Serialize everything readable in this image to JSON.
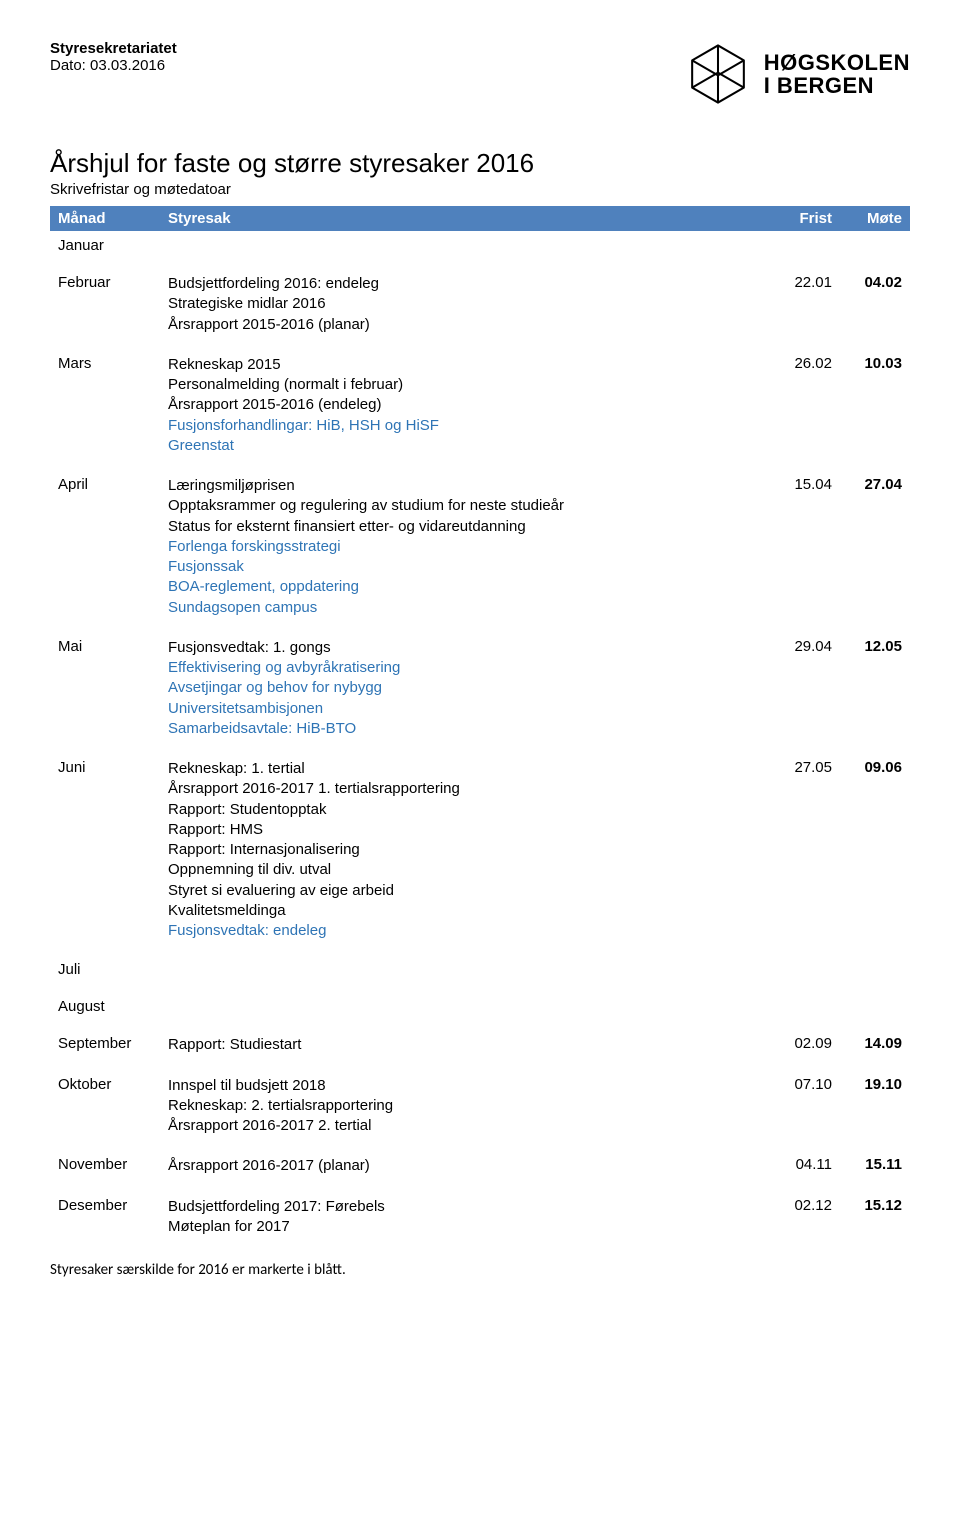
{
  "header": {
    "org": "Styresekretariatet",
    "date_label": "Dato: 03.03.2016",
    "logo_line1": "HØGSKOLEN",
    "logo_line2": "I BERGEN"
  },
  "title": "Årshjul for faste og større styresaker 2016",
  "subtitle": "Skrivefristar og møtedatoar",
  "table_header": {
    "month": "Månad",
    "desc": "Styresak",
    "frist": "Frist",
    "mote": "Møte"
  },
  "rows": [
    {
      "month": "Januar",
      "lines": [],
      "frist": "",
      "mote": ""
    },
    {
      "month": "Februar",
      "lines": [
        {
          "text": "Budsjettfordeling 2016: endeleg",
          "blue": false
        },
        {
          "text": "Strategiske midlar 2016",
          "blue": false
        },
        {
          "text": "Årsrapport 2015-2016 (planar)",
          "blue": false
        }
      ],
      "frist": "22.01",
      "mote": "04.02"
    },
    {
      "month": "Mars",
      "lines": [
        {
          "text": "Rekneskap 2015",
          "blue": false
        },
        {
          "text": "Personalmelding (normalt i februar)",
          "blue": false
        },
        {
          "text": "Årsrapport 2015-2016 (endeleg)",
          "blue": false
        },
        {
          "text": "Fusjonsforhandlingar: HiB, HSH og HiSF",
          "blue": true
        },
        {
          "text": "Greenstat",
          "blue": true
        }
      ],
      "frist": "26.02",
      "mote": "10.03"
    },
    {
      "month": "April",
      "lines": [
        {
          "text": "Læringsmiljøprisen",
          "blue": false
        },
        {
          "text": "Opptaksrammer og regulering av studium for neste studieår",
          "blue": false
        },
        {
          "text": "Status for eksternt finansiert etter- og vidareutdanning",
          "blue": false
        },
        {
          "text": "Forlenga forskingsstrategi",
          "blue": true
        },
        {
          "text": "Fusjonssak",
          "blue": true
        },
        {
          "text": "BOA-reglement, oppdatering",
          "blue": true
        },
        {
          "text": "Sundagsopen campus",
          "blue": true
        }
      ],
      "frist": "15.04",
      "mote": "27.04"
    },
    {
      "month": "Mai",
      "lines": [
        {
          "text": "Fusjonsvedtak: 1. gongs",
          "blue": false
        },
        {
          "text": "Effektivisering og avbyråkratisering",
          "blue": true
        },
        {
          "text": "Avsetjingar og behov for nybygg",
          "blue": true
        },
        {
          "text": "Universitetsambisjonen",
          "blue": true
        },
        {
          "text": "Samarbeidsavtale: HiB-BTO",
          "blue": true
        }
      ],
      "frist": "29.04",
      "mote": "12.05"
    },
    {
      "month": "Juni",
      "lines": [
        {
          "text": "Rekneskap: 1. tertial",
          "blue": false
        },
        {
          "text": "Årsrapport 2016-2017 1. tertialsrapportering",
          "blue": false
        },
        {
          "text": "Rapport: Studentopptak",
          "blue": false
        },
        {
          "text": "Rapport: HMS",
          "blue": false
        },
        {
          "text": "Rapport: Internasjonalisering",
          "blue": false
        },
        {
          "text": "Oppnemning til div. utval",
          "blue": false
        },
        {
          "text": "Styret si evaluering av eige arbeid",
          "blue": false
        },
        {
          "text": "Kvalitetsmeldinga",
          "blue": false
        },
        {
          "text": "Fusjonsvedtak: endeleg",
          "blue": true
        }
      ],
      "frist": "27.05",
      "mote": "09.06"
    },
    {
      "month": "Juli",
      "lines": [],
      "frist": "",
      "mote": ""
    },
    {
      "month": "August",
      "lines": [],
      "frist": "",
      "mote": ""
    },
    {
      "month": "September",
      "lines": [
        {
          "text": "Rapport: Studiestart",
          "blue": false
        }
      ],
      "frist": "02.09",
      "mote": "14.09"
    },
    {
      "month": "Oktober",
      "lines": [
        {
          "text": "Innspel til budsjett 2018",
          "blue": false
        },
        {
          "text": "Rekneskap: 2. tertialsrapportering",
          "blue": false
        },
        {
          "text": "Årsrapport 2016-2017 2. tertial",
          "blue": false
        }
      ],
      "frist": "07.10",
      "mote": "19.10"
    },
    {
      "month": "November",
      "lines": [
        {
          "text": "Årsrapport 2016-2017 (planar)",
          "blue": false
        }
      ],
      "frist": "04.11",
      "mote": "15.11"
    },
    {
      "month": "Desember",
      "lines": [
        {
          "text": "Budsjettfordeling 2017: Førebels",
          "blue": false
        },
        {
          "text": "Møteplan for 2017",
          "blue": false
        }
      ],
      "frist": "02.12",
      "mote": "15.12"
    }
  ],
  "footer": "Styresaker særskilde for 2016 er markerte i blått."
}
